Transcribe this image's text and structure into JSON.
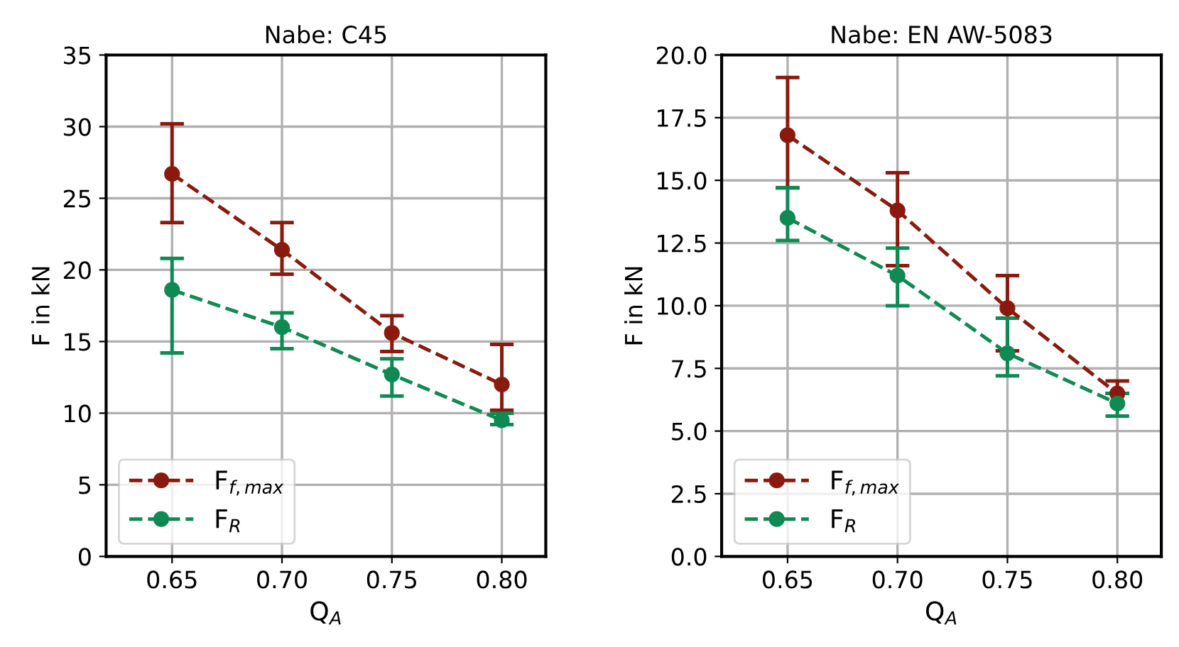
{
  "chart_data": [
    {
      "type": "line",
      "title": "Nabe: C45",
      "xlabel": "Q$_{A}$",
      "ylabel": "F in kN",
      "x": [
        0.65,
        0.7,
        0.75,
        0.8
      ],
      "xlim": [
        0.62,
        0.82
      ],
      "xticks": [
        {
          "value": 0.65,
          "label": "0.65"
        },
        {
          "value": 0.7,
          "label": "0.70"
        },
        {
          "value": 0.75,
          "label": "0.75"
        },
        {
          "value": 0.8,
          "label": "0.80"
        }
      ],
      "ylim": [
        0,
        35
      ],
      "yticks": [
        0,
        5,
        10,
        15,
        20,
        25,
        30,
        35
      ],
      "grid": true,
      "legend": "bottom left",
      "marker": "circle",
      "line_style": "dashed",
      "series": [
        {
          "name": "F$_{f,max}$",
          "color": "#8b1a0e",
          "values": [
            26.7,
            21.4,
            15.6,
            12.0
          ],
          "errors": [
            [
              23.3,
              30.2
            ],
            [
              19.7,
              23.3
            ],
            [
              14.3,
              16.8
            ],
            [
              10.2,
              14.8
            ]
          ]
        },
        {
          "name": "F$_{R}$",
          "color": "#0e8a52",
          "values": [
            18.6,
            16.0,
            12.7,
            9.5
          ],
          "errors": [
            [
              14.2,
              20.8
            ],
            [
              14.5,
              17.0
            ],
            [
              11.2,
              13.8
            ],
            [
              9.2,
              10.0
            ]
          ]
        }
      ]
    },
    {
      "type": "line",
      "title": "Nabe: EN AW-5083",
      "xlabel": "Q$_{A}$",
      "ylabel": "F in kN",
      "x": [
        0.65,
        0.7,
        0.75,
        0.8
      ],
      "xlim": [
        0.62,
        0.82
      ],
      "xticks": [
        {
          "value": 0.65,
          "label": "0.65"
        },
        {
          "value": 0.7,
          "label": "0.70"
        },
        {
          "value": 0.75,
          "label": "0.75"
        },
        {
          "value": 0.8,
          "label": "0.80"
        }
      ],
      "ylim": [
        0,
        20
      ],
      "yticks": [
        {
          "value": 0,
          "label": "0.0"
        },
        {
          "value": 2.5,
          "label": "2.5"
        },
        {
          "value": 5,
          "label": "5.0"
        },
        {
          "value": 7.5,
          "label": "7.5"
        },
        {
          "value": 10,
          "label": "10.0"
        },
        {
          "value": 12.5,
          "label": "12.5"
        },
        {
          "value": 15,
          "label": "15.0"
        },
        {
          "value": 17.5,
          "label": "17.5"
        },
        {
          "value": 20,
          "label": "20.0"
        }
      ],
      "grid": true,
      "legend": "bottom left",
      "marker": "circle",
      "line_style": "dashed",
      "series": [
        {
          "name": "F$_{f,max}$",
          "color": "#8b1a0e",
          "values": [
            16.8,
            13.8,
            9.9,
            6.5
          ],
          "errors": [
            [
              14.7,
              19.1
            ],
            [
              11.6,
              15.3
            ],
            [
              8.2,
              11.2
            ],
            [
              6.5,
              7.0
            ]
          ]
        },
        {
          "name": "F$_{R}$",
          "color": "#0e8a52",
          "values": [
            13.5,
            11.2,
            8.1,
            6.1
          ],
          "errors": [
            [
              12.6,
              14.7
            ],
            [
              10.0,
              12.3
            ],
            [
              7.2,
              9.5
            ],
            [
              5.6,
              6.5
            ]
          ]
        }
      ]
    }
  ]
}
